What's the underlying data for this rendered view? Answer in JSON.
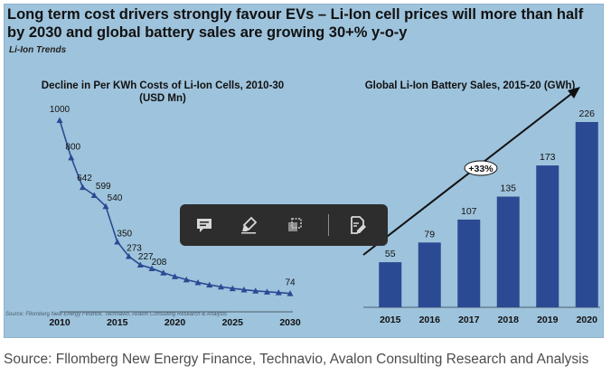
{
  "headline": "Long term cost drivers strongly favour EVs – Li-Ion cell prices will more than half by 2030 and global battery sales are growing 30+% y-o-y",
  "subtag": "Li-Ion Trends",
  "footnote": "Source: Fllomberg New Energy Finance, Technavio, Avalon Consulting Research & Analysis",
  "source": "Source: Fllomberg New Energy Finance, Technavio, Avalon Consulting Research and Analysis",
  "colors": {
    "panel": "#9ec3dc",
    "line": "#2a4a93",
    "bar": "#2a4a93",
    "toolbar": "#2d2d2d"
  },
  "toolbar": {
    "icons": [
      "comment-icon",
      "highlighter-icon",
      "crop-icon",
      "sign-document-icon"
    ]
  },
  "chart_data": [
    {
      "type": "line",
      "title": "Decline in Per KWh Costs of Li-Ion Cells, 2010-30\n(USD Mn)",
      "title_lines": [
        "Decline in Per KWh Costs of Li-Ion Cells, 2010-30",
        "(USD Mn)"
      ],
      "x": [
        2010,
        2011,
        2012,
        2013,
        2014,
        2015,
        2016,
        2017,
        2018,
        2019,
        2020,
        2021,
        2022,
        2023,
        2024,
        2025,
        2026,
        2027,
        2028,
        2029,
        2030
      ],
      "values": [
        1000,
        800,
        642,
        599,
        540,
        350,
        273,
        227,
        208,
        185,
        165,
        148,
        133,
        120,
        110,
        101,
        94,
        88,
        83,
        79,
        74
      ],
      "labeled_points": [
        {
          "x": 2010,
          "label": "1000"
        },
        {
          "x": 2011,
          "label": "800"
        },
        {
          "x": 2012,
          "label": "642"
        },
        {
          "x": 2013,
          "label": "599"
        },
        {
          "x": 2014,
          "label": "540"
        },
        {
          "x": 2015,
          "label": "350"
        },
        {
          "x": 2016,
          "label": "273"
        },
        {
          "x": 2017,
          "label": "227"
        },
        {
          "x": 2018,
          "label": "208"
        },
        {
          "x": 2030,
          "label": "74"
        }
      ],
      "xticks": [
        "2010",
        "2015",
        "2020",
        "2025",
        "2030"
      ],
      "xlim": [
        2010,
        2030
      ],
      "ylim": [
        0,
        1000
      ]
    },
    {
      "type": "bar",
      "title": "Global Li-Ion Battery Sales, 2015-20 (GWh)",
      "categories": [
        "2015",
        "2016",
        "2017",
        "2018",
        "2019",
        "2020"
      ],
      "values": [
        55,
        79,
        107,
        135,
        173,
        226
      ],
      "ylim": [
        0,
        226
      ],
      "annotation": "+33%"
    }
  ]
}
